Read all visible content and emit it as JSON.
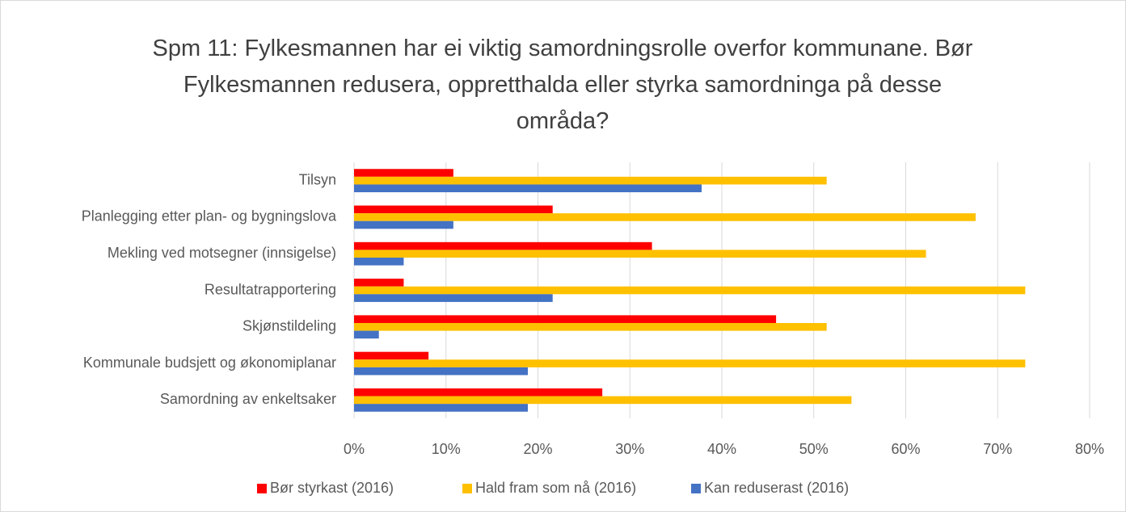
{
  "chart_data": {
    "type": "barh",
    "title": "Spm 11: Fylkesmannen har ei viktig samordningsrolle overfor kommunane. Bør Fylkesmannen redusera, oppretthalda eller styrka samordninga på desse områda?",
    "categories": [
      "Tilsyn",
      "Planlegging etter plan- og bygningslova",
      "Mekling ved motsegner (innsigelse)",
      "Resultatrapportering",
      "Skjønstildeling",
      "Kommunale budsjett og økonomiplanar",
      "Samordning av enkeltsaker"
    ],
    "series": [
      {
        "name": "Bør styrkast (2016)",
        "color": "#ff0000",
        "values": [
          10.8,
          21.6,
          32.4,
          5.4,
          45.9,
          8.1,
          27.0
        ]
      },
      {
        "name": "Hald fram som nå (2016)",
        "color": "#ffc000",
        "values": [
          51.4,
          67.6,
          62.2,
          73.0,
          51.4,
          73.0,
          54.1
        ]
      },
      {
        "name": "Kan reduserast (2016)",
        "color": "#4472c4",
        "values": [
          37.8,
          10.8,
          5.4,
          21.6,
          2.7,
          18.9,
          18.9
        ]
      }
    ],
    "xlim": [
      0,
      80
    ],
    "xticks": [
      {
        "value": 0,
        "label": "0%"
      },
      {
        "value": 10,
        "label": "10%"
      },
      {
        "value": 20,
        "label": "20%"
      },
      {
        "value": 30,
        "label": "30%"
      },
      {
        "value": 40,
        "label": "40%"
      },
      {
        "value": 50,
        "label": "50%"
      },
      {
        "value": 60,
        "label": "60%"
      },
      {
        "value": 70,
        "label": "70%"
      },
      {
        "value": 80,
        "label": "80%"
      }
    ],
    "grid": true,
    "legend": "bottom"
  }
}
